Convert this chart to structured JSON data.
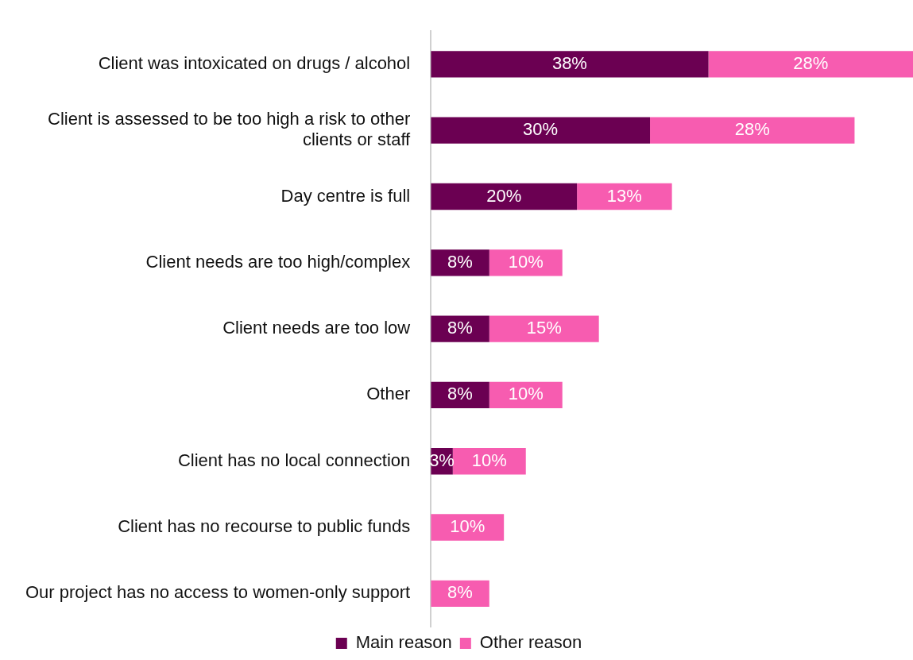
{
  "chart_data": {
    "type": "bar",
    "orientation": "horizontal",
    "stacked": true,
    "legend": "bottom",
    "categories": [
      "Client was intoxicated on drugs / alcohol",
      "Client is assessed to be too high a risk to other clients or staff",
      "Day centre is full",
      "Client needs are too high/complex",
      "Client needs are too low",
      "Other",
      "Client has no local connection",
      "Client has no recourse to public funds",
      "Our project has no access to women-only support"
    ],
    "series": [
      {
        "name": "Main reason",
        "color": "#6b0052",
        "values": [
          38,
          30,
          20,
          8,
          8,
          8,
          3,
          null,
          null
        ],
        "value_labels": [
          "38%",
          "30%",
          "20%",
          "8%",
          "8%",
          "8%",
          "3%",
          null,
          null
        ]
      },
      {
        "name": "Other reason",
        "color": "#f75cb0",
        "values": [
          28,
          28,
          13,
          10,
          15,
          10,
          10,
          10,
          8
        ],
        "value_labels": [
          "28%",
          "28%",
          "13%",
          "10%",
          "15%",
          "10%",
          "10%",
          "10%",
          "8%"
        ]
      }
    ]
  }
}
